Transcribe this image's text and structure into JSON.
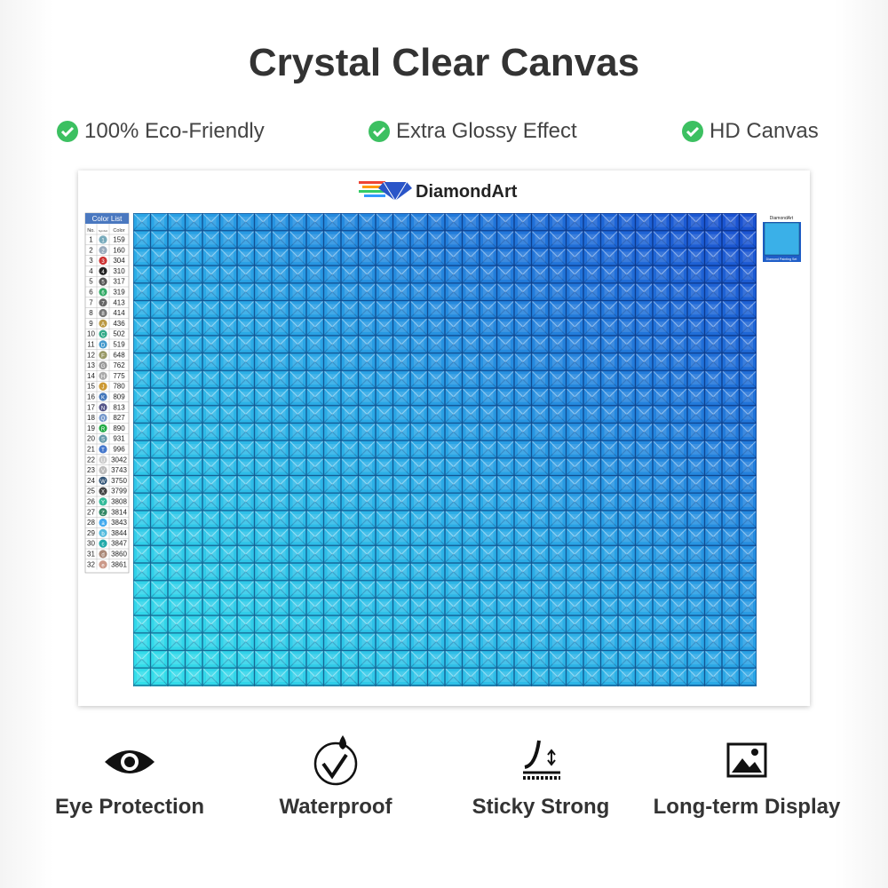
{
  "header": {
    "title": "Crystal Clear Canvas"
  },
  "features": [
    "100% Eco-Friendly",
    "Extra Glossy Effect",
    "HD Canvas"
  ],
  "canvas": {
    "brand": "DiamondArt",
    "color_list": {
      "title": "Color List",
      "columns": [
        "No.",
        "Symbol",
        "Color"
      ],
      "rows": [
        [
          "1",
          "1",
          "159"
        ],
        [
          "2",
          "2",
          "160"
        ],
        [
          "3",
          "3",
          "304"
        ],
        [
          "4",
          "4",
          "310"
        ],
        [
          "5",
          "5",
          "317"
        ],
        [
          "6",
          "6",
          "319"
        ],
        [
          "7",
          "7",
          "413"
        ],
        [
          "8",
          "8",
          "414"
        ],
        [
          "9",
          "A",
          "436"
        ],
        [
          "10",
          "C",
          "502"
        ],
        [
          "11",
          "D",
          "519"
        ],
        [
          "12",
          "F",
          "648"
        ],
        [
          "13",
          "G",
          "762"
        ],
        [
          "14",
          "H",
          "775"
        ],
        [
          "15",
          "J",
          "780"
        ],
        [
          "16",
          "K",
          "809"
        ],
        [
          "17",
          "N",
          "813"
        ],
        [
          "18",
          "Q",
          "827"
        ],
        [
          "19",
          "R",
          "890"
        ],
        [
          "20",
          "S",
          "931"
        ],
        [
          "21",
          "T",
          "996"
        ],
        [
          "22",
          "U",
          "3042"
        ],
        [
          "23",
          "V",
          "3743"
        ],
        [
          "24",
          "W",
          "3750"
        ],
        [
          "25",
          "X",
          "3799"
        ],
        [
          "26",
          "Y",
          "3808"
        ],
        [
          "27",
          "Z",
          "3814"
        ],
        [
          "28",
          "a",
          "3843"
        ],
        [
          "29",
          "b",
          "3844"
        ],
        [
          "30",
          "c",
          "3847"
        ],
        [
          "31",
          "d",
          "3860"
        ],
        [
          "32",
          "e",
          "3861"
        ]
      ]
    },
    "thumbnail": {
      "brand": "DiamondArt",
      "caption": "Diamond Painting Set"
    }
  },
  "benefits": [
    "Eye Protection",
    "Waterproof",
    "Sticky Strong",
    "Long-term Display"
  ]
}
